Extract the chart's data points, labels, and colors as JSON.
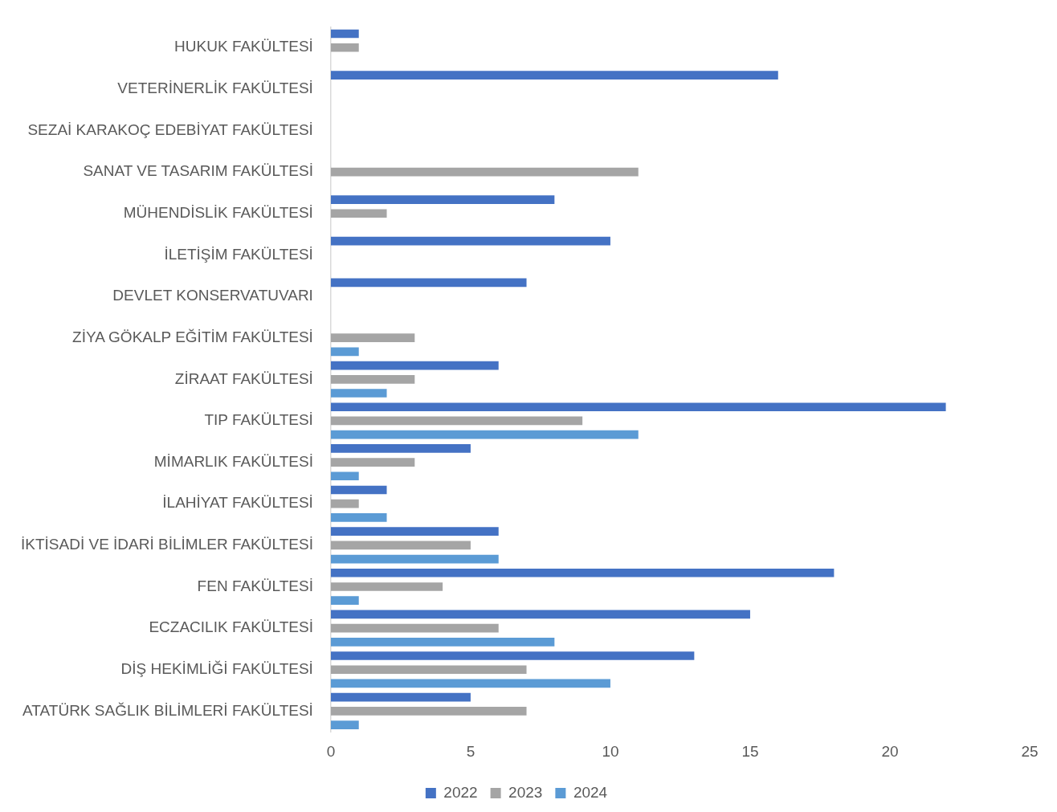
{
  "chart_data": {
    "type": "bar",
    "orientation": "horizontal",
    "categories": [
      "HUKUK FAKÜLTESİ",
      "VETERİNERLİK FAKÜLTESİ",
      "SEZAİ KARAKOÇ EDEBİYAT FAKÜLTESİ",
      "SANAT VE TASARIM FAKÜLTESİ",
      "MÜHENDİSLİK FAKÜLTESİ",
      "İLETİŞİM FAKÜLTESİ",
      "DEVLET KONSERVATUVARI",
      "ZİYA GÖKALP EĞİTİM FAKÜLTESİ",
      "ZİRAAT FAKÜLTESİ",
      "TIP FAKÜLTESİ",
      "MİMARLIK FAKÜLTESİ",
      "İLAHİYAT FAKÜLTESİ",
      "İKTİSADİ VE İDARİ BİLİMLER FAKÜLTESİ",
      "FEN FAKÜLTESİ",
      "ECZACILIK FAKÜLTESİ",
      "DİŞ HEKİMLİĞİ FAKÜLTESİ",
      "ATATÜRK SAĞLIK BİLİMLERİ FAKÜLTESİ"
    ],
    "series": [
      {
        "name": "2022",
        "color": "#4472c4",
        "values": [
          1,
          16,
          null,
          null,
          8,
          10,
          7,
          null,
          6,
          22,
          5,
          2,
          6,
          18,
          15,
          13,
          5
        ]
      },
      {
        "name": "2023",
        "color": "#a5a5a5",
        "values": [
          1,
          null,
          null,
          11,
          2,
          null,
          null,
          3,
          3,
          9,
          3,
          1,
          5,
          4,
          6,
          7,
          7
        ]
      },
      {
        "name": "2024",
        "color": "#5b9bd5",
        "values": [
          null,
          null,
          null,
          null,
          null,
          null,
          null,
          1,
          2,
          11,
          1,
          2,
          6,
          1,
          8,
          10,
          1
        ]
      }
    ],
    "xlim": [
      0,
      25
    ],
    "xticks": [
      0,
      5,
      10,
      15,
      20,
      25
    ],
    "grid": false,
    "legend": "bottom"
  }
}
